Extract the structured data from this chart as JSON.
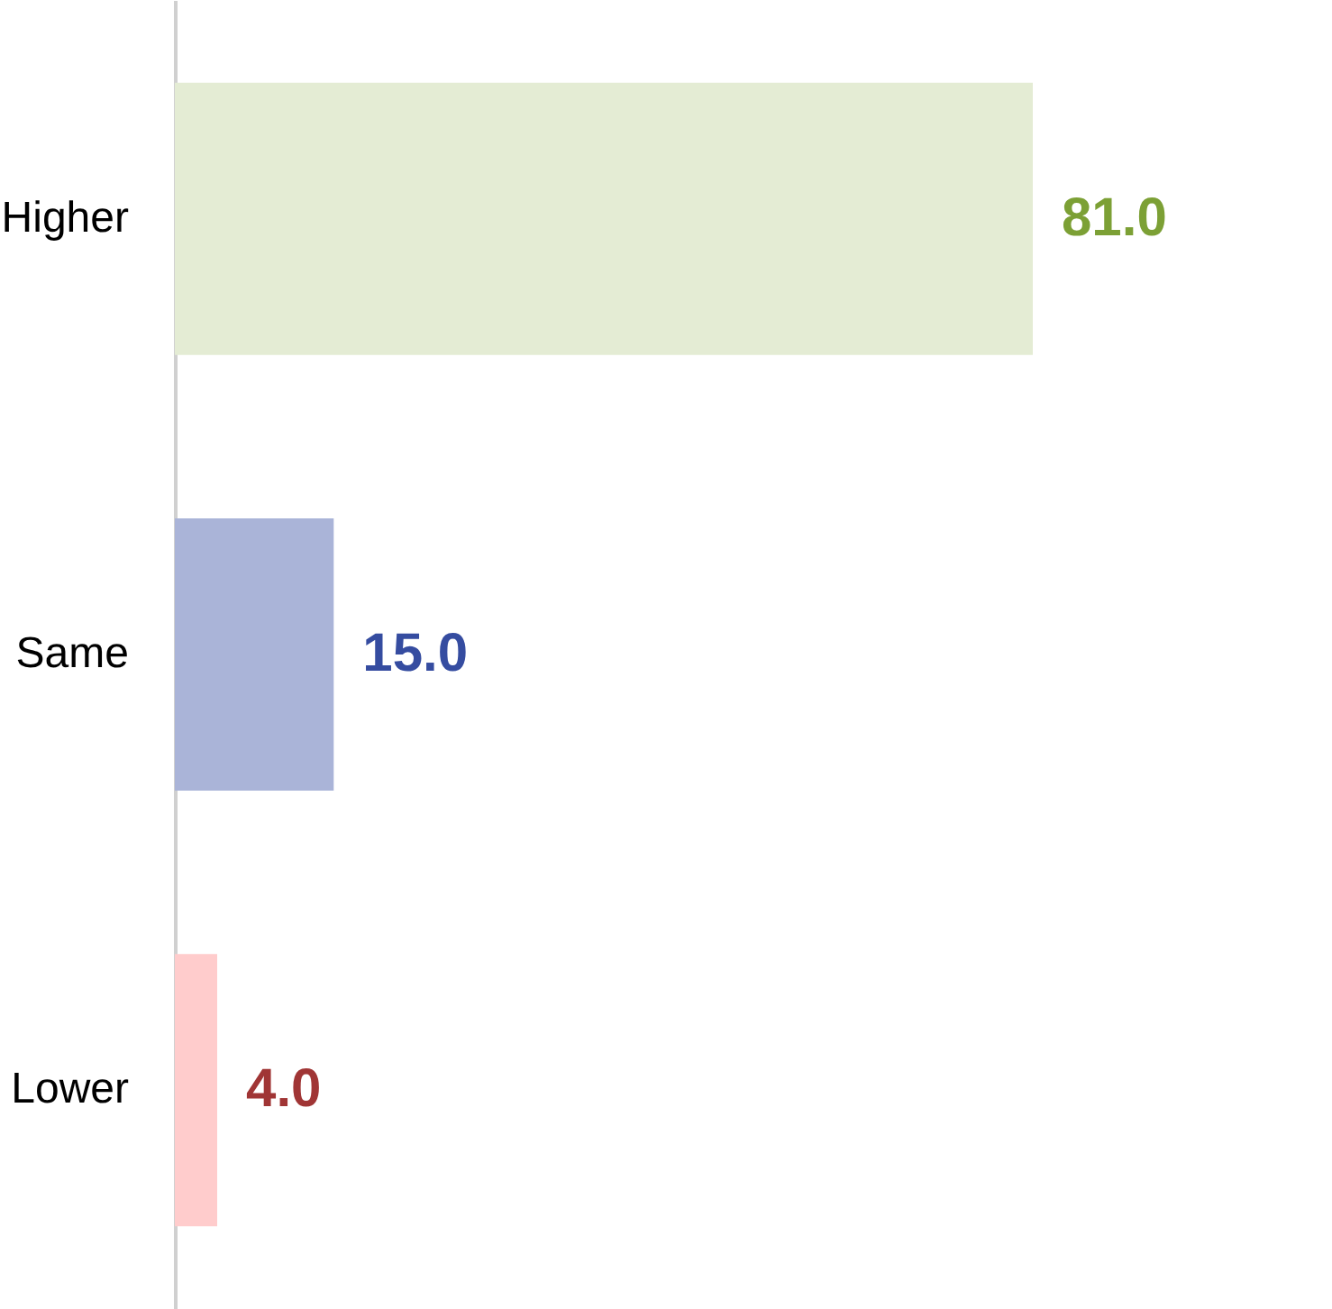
{
  "chart_data": {
    "type": "bar",
    "orientation": "horizontal",
    "categories": [
      "Higher",
      "Same",
      "Lower"
    ],
    "values": [
      81.0,
      15.0,
      4.0
    ],
    "colors": [
      "#e4ecd4",
      "#aab4d8",
      "#ffcccc"
    ],
    "value_labels": [
      "81.0",
      "15.0",
      "4.0"
    ]
  }
}
